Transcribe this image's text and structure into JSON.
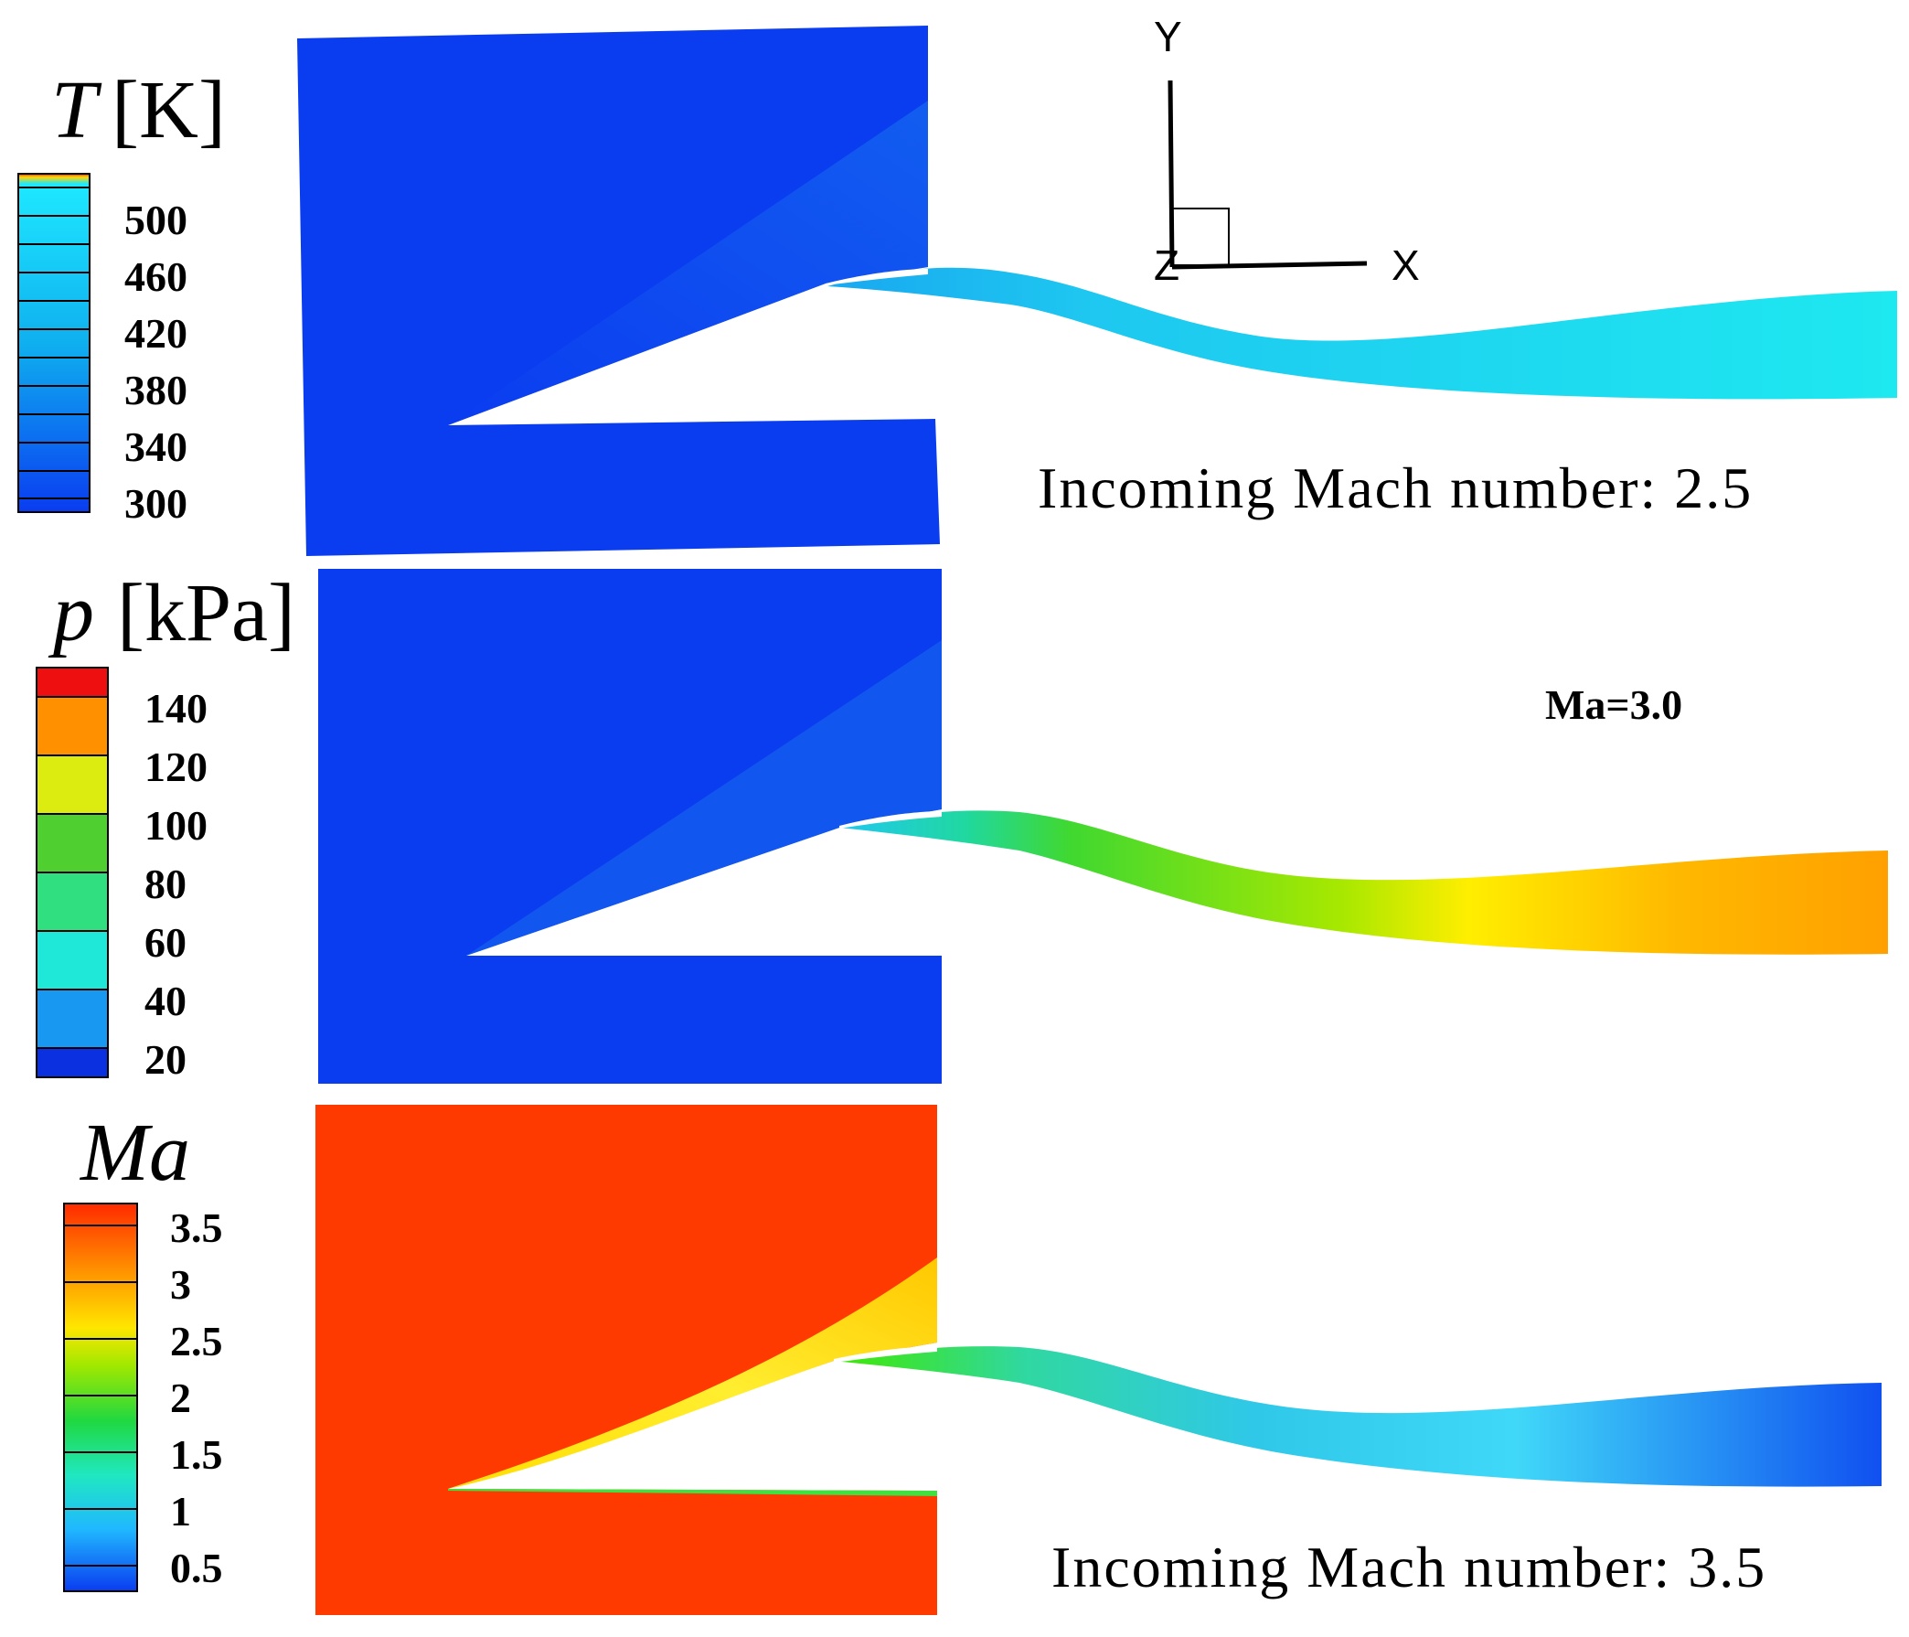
{
  "colors": {
    "domain_blue": "#0a3cf0",
    "flow_cyan": "#1ed8ef",
    "field_red": "#ff3a00",
    "white": "#ffffff"
  },
  "panels": {
    "temperature": {
      "title_symbol": "T",
      "title_unit": "[K]",
      "ticks": [
        "500",
        "460",
        "420",
        "380",
        "340",
        "300"
      ]
    },
    "pressure": {
      "title_symbol": "p",
      "title_unit": "[kPa]",
      "ticks": [
        "140",
        "120",
        "100",
        "80",
        "60",
        "40",
        "20"
      ]
    },
    "mach": {
      "title_symbol": "Ma",
      "ticks": [
        "3.5",
        "3",
        "2.5",
        "2",
        "1.5",
        "1",
        "0.5"
      ]
    }
  },
  "annotations": {
    "caption_top": "Incoming Mach number: 2.5",
    "caption_bottom": "Incoming Mach number: 3.5",
    "ma_middle": "Ma=3.0"
  },
  "axes_triad": {
    "x_label": "X",
    "y_label": "Y",
    "z_label": "Z"
  }
}
